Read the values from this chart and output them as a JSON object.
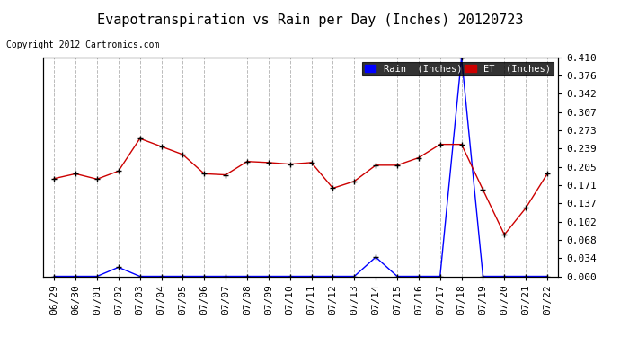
{
  "title": "Evapotranspiration vs Rain per Day (Inches) 20120723",
  "copyright": "Copyright 2012 Cartronics.com",
  "dates": [
    "06/29",
    "06/30",
    "07/01",
    "07/02",
    "07/03",
    "07/04",
    "07/05",
    "07/06",
    "07/07",
    "07/08",
    "07/09",
    "07/10",
    "07/11",
    "07/12",
    "07/13",
    "07/14",
    "07/15",
    "07/16",
    "07/17",
    "07/18",
    "07/19",
    "07/20",
    "07/21",
    "07/22"
  ],
  "rain": [
    0.0,
    0.0,
    0.0,
    0.017,
    0.0,
    0.0,
    0.0,
    0.0,
    0.0,
    0.0,
    0.0,
    0.0,
    0.0,
    0.0,
    0.0,
    0.036,
    0.0,
    0.0,
    0.0,
    0.41,
    0.0,
    0.0,
    0.0,
    0.0
  ],
  "et": [
    0.183,
    0.192,
    0.182,
    0.197,
    0.258,
    0.243,
    0.228,
    0.192,
    0.19,
    0.215,
    0.213,
    0.21,
    0.213,
    0.165,
    0.178,
    0.208,
    0.208,
    0.222,
    0.247,
    0.247,
    0.162,
    0.078,
    0.128,
    0.192
  ],
  "rain_color": "#0000ff",
  "et_color": "#cc0000",
  "bg_color": "#ffffff",
  "grid_color": "#bbbbbb",
  "ylim": [
    0.0,
    0.41
  ],
  "yticks": [
    0.0,
    0.034,
    0.068,
    0.102,
    0.137,
    0.171,
    0.205,
    0.239,
    0.273,
    0.307,
    0.342,
    0.376,
    0.41
  ],
  "title_fontsize": 11,
  "tick_fontsize": 8,
  "copyright_fontsize": 7,
  "legend_rain_label": "Rain  (Inches)"
}
